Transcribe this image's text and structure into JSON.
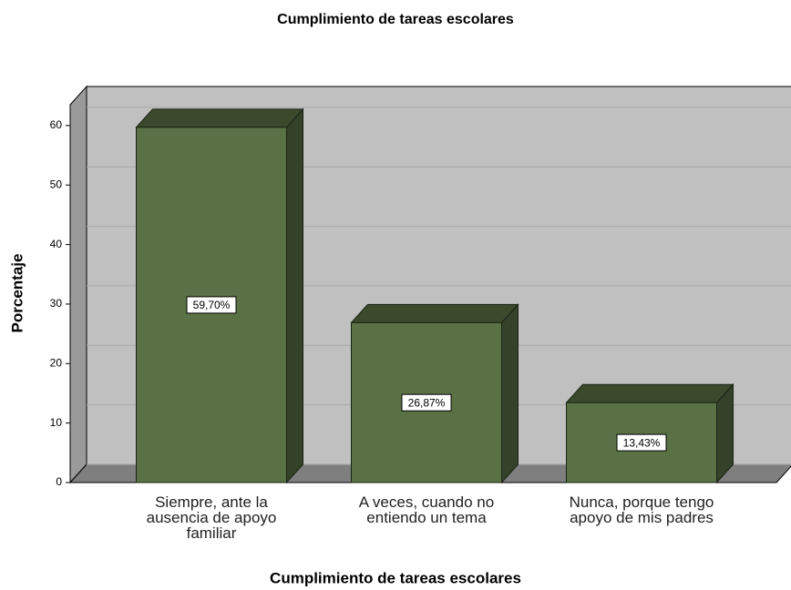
{
  "chart_data": {
    "type": "bar",
    "title": "Cumplimiento de tareas escolares",
    "x_label": "Cumplimiento de tareas escolares",
    "y_label": "Porcentaje",
    "categories": [
      "Siempre, ante la ausencia de apoyo familiar",
      "A veces, cuando no entiendo un tema",
      "Nunca, porque tengo apoyo de mis padres"
    ],
    "values": [
      59.7,
      26.87,
      13.43
    ],
    "value_labels": [
      "59,70%",
      "26,87%",
      "13,43%"
    ],
    "color": "#5a7045",
    "ylim": [
      0,
      63.5
    ],
    "yticks": [
      0,
      10,
      20,
      30,
      40,
      50,
      60
    ],
    "grid": true
  }
}
